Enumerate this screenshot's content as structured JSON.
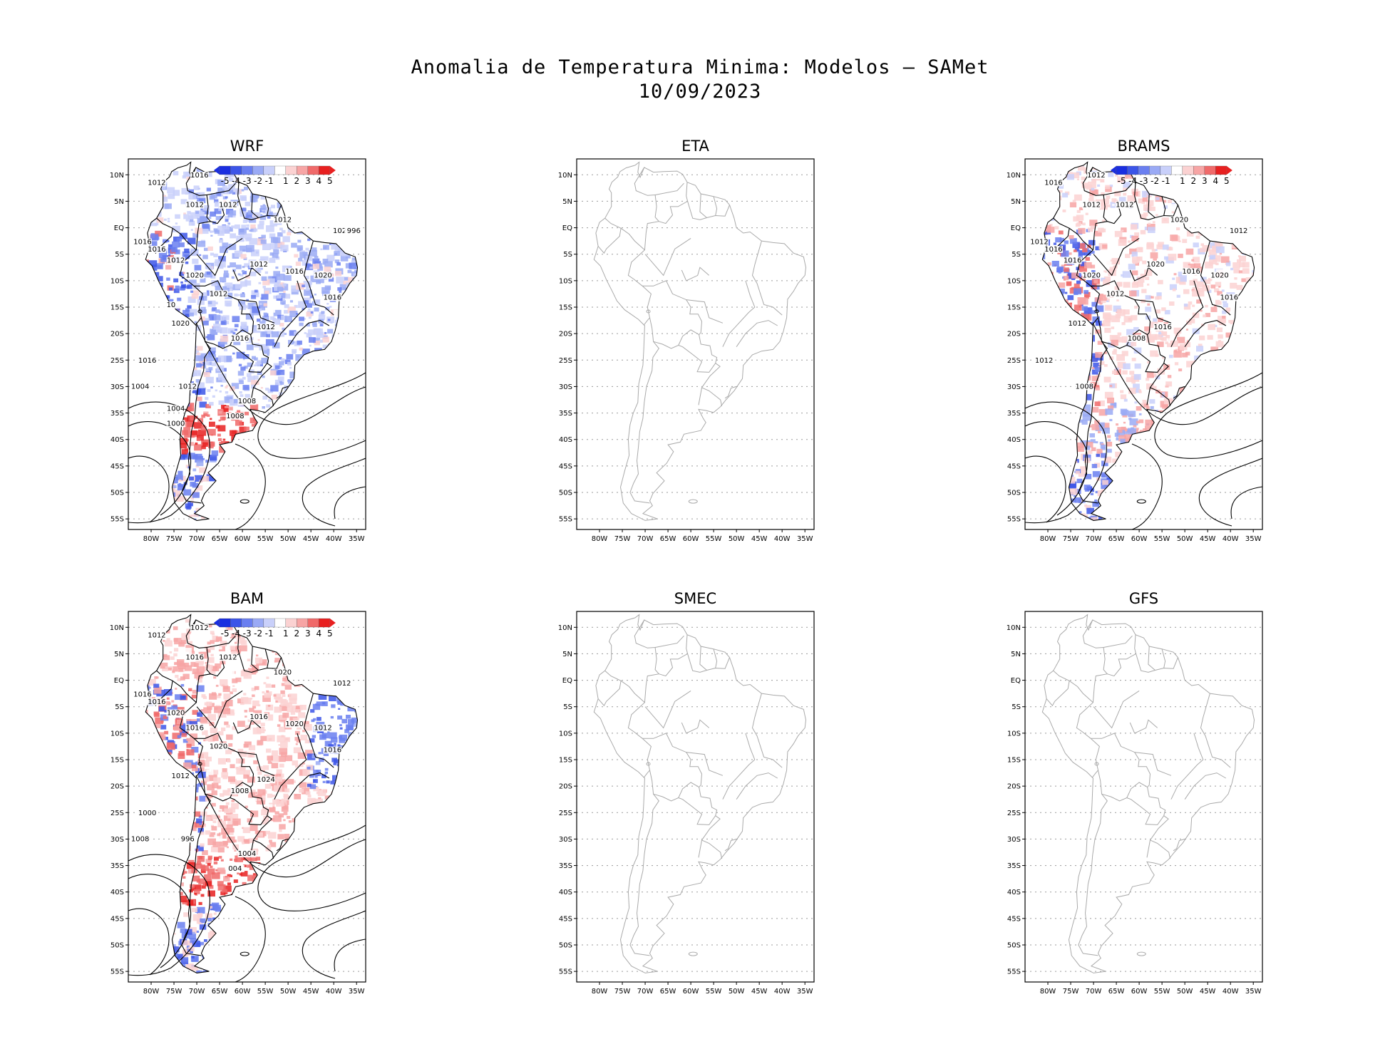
{
  "title": {
    "line1": "Anomalia de Temperatura Minima: Modelos — SAMet",
    "line2": "10/09/2023"
  },
  "axes": {
    "lat_ticks": [
      "10N",
      "5N",
      "EQ",
      "5S",
      "10S",
      "15S",
      "20S",
      "25S",
      "30S",
      "35S",
      "40S",
      "45S",
      "50S",
      "55S"
    ],
    "lon_ticks": [
      "80W",
      "75W",
      "70W",
      "65W",
      "60W",
      "55W",
      "50W",
      "45W",
      "40W",
      "35W"
    ]
  },
  "colorbar": {
    "labels": [
      "-5",
      "-4",
      "-3",
      "-2",
      "-1",
      "1",
      "2",
      "3",
      "4",
      "5"
    ],
    "colors": [
      "#1a2ee0",
      "#3c55e8",
      "#6a7ff0",
      "#9aaaf5",
      "#c9d0fa",
      "#ffffff",
      "#fbd2d2",
      "#f7a5a5",
      "#f06a6a",
      "#e82020"
    ]
  },
  "panels": [
    {
      "name": "WRF",
      "has_data": true,
      "anomaly": "mixed-negative",
      "isobars": [
        "1012",
        "1016",
        "1012",
        "1012",
        "1012",
        "1020",
        "1016",
        "1016",
        "1012",
        "1012",
        "1016",
        "1020",
        "1012",
        "1020",
        "1012",
        "1016",
        "1020",
        "1016",
        "1016",
        "1012",
        "1004",
        "1008",
        "1008",
        "1004",
        "1000",
        "996",
        "10"
      ]
    },
    {
      "name": "ETA",
      "has_data": false,
      "anomaly": "none",
      "isobars": []
    },
    {
      "name": "BRAMS",
      "has_data": true,
      "anomaly": "mostly-positive",
      "isobars": [
        "1016",
        "1012",
        "1012",
        "1012",
        "1020",
        "1012",
        "1012",
        "1016",
        "1016",
        "1020",
        "1016",
        "1020",
        "1012",
        "1020",
        "1016",
        "1016",
        "1012",
        "1008",
        "1012",
        "1008"
      ]
    },
    {
      "name": "BAM",
      "has_data": true,
      "anomaly": "strong-positive",
      "isobars": [
        "1012",
        "1012",
        "1012",
        "1016",
        "1020",
        "1012",
        "1016",
        "1016",
        "1020",
        "1016",
        "1020",
        "1012",
        "1020",
        "1016",
        "1024",
        "1016",
        "1012",
        "1008",
        "1000",
        "996",
        "1008",
        "1004",
        "004"
      ]
    },
    {
      "name": "SMEC",
      "has_data": false,
      "anomaly": "none",
      "isobars": []
    },
    {
      "name": "GFS",
      "has_data": false,
      "anomaly": "none",
      "isobars": []
    }
  ]
}
